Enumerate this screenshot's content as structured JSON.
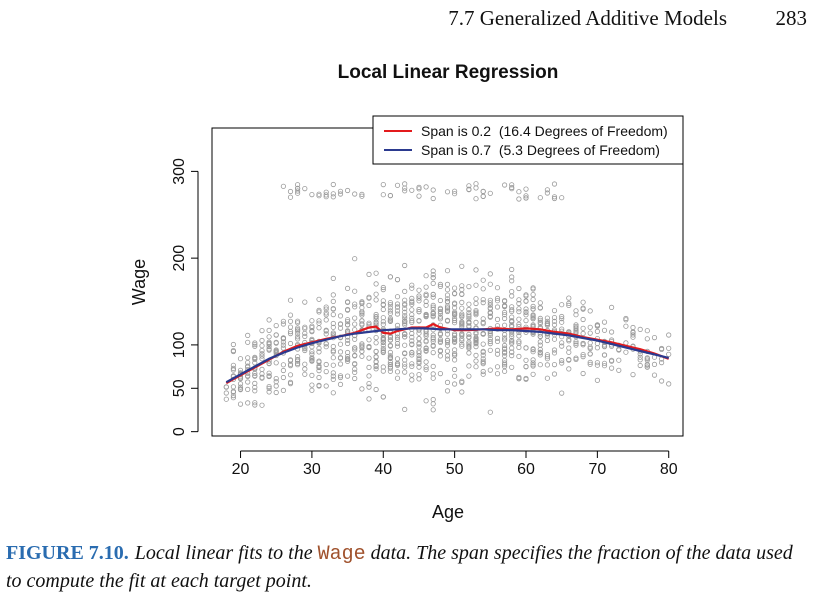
{
  "page_header": {
    "section": "7.7 Generalized Additive Models",
    "page_number": "283"
  },
  "chart_data": {
    "type": "scatter",
    "title": "Local Linear Regression",
    "xlabel": "Age",
    "ylabel": "Wage",
    "xlim": [
      16,
      82
    ],
    "ylim": [
      -5,
      350
    ],
    "xticks": [
      "20",
      "30",
      "40",
      "50",
      "60",
      "70",
      "80"
    ],
    "yticks": [
      "0",
      "50",
      "100",
      "200",
      "300"
    ],
    "grid": false,
    "legend_position": "top-right",
    "point_color": "#9a9a9a",
    "series": [
      {
        "name": "Span is 0.2  (16.4 Degrees of Freedom)",
        "color": "#e31a1c",
        "x": [
          18,
          20,
          22,
          24,
          26,
          28,
          30,
          32,
          34,
          36,
          38,
          39,
          40,
          41,
          42,
          44,
          46,
          47,
          48,
          50,
          52,
          54,
          56,
          58,
          60,
          62,
          64,
          66,
          68,
          70,
          72,
          74,
          76,
          78,
          80
        ],
        "y": [
          56,
          65,
          74,
          83,
          92,
          99,
          103,
          107,
          110,
          114,
          120,
          121,
          114,
          113,
          116,
          120,
          120,
          124,
          120,
          117,
          117,
          118,
          119,
          118,
          119,
          118,
          115,
          113,
          109,
          106,
          103,
          99,
          95,
          90,
          84
        ]
      },
      {
        "name": "Span is 0.7  (5.3 Degrees of Freedom)",
        "color": "#2b3a8f",
        "x": [
          18,
          20,
          22,
          24,
          26,
          28,
          30,
          32,
          34,
          36,
          38,
          40,
          42,
          44,
          46,
          48,
          50,
          52,
          54,
          56,
          58,
          60,
          62,
          64,
          66,
          68,
          70,
          72,
          74,
          76,
          78,
          80
        ],
        "y": [
          57,
          66,
          75,
          84,
          91,
          97,
          102,
          106,
          110,
          113,
          115,
          117,
          118,
          119,
          119,
          118,
          118,
          118,
          118,
          117,
          117,
          116,
          115,
          113,
          111,
          108,
          105,
          101,
          97,
          93,
          89,
          85
        ]
      }
    ]
  },
  "caption": {
    "label": "FIGURE 7.10.",
    "text_before": "Local linear fits to the",
    "code": "Wage",
    "text_after": "data. The span specifies the fraction of the data used to compute the fit at each target point."
  }
}
